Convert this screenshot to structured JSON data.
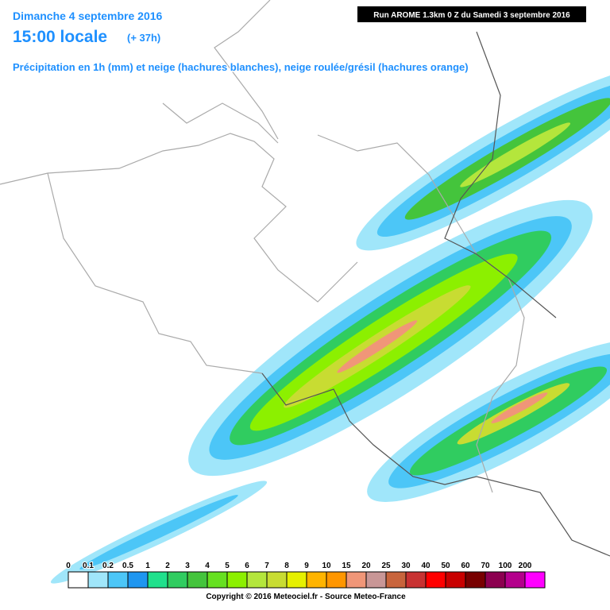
{
  "header": {
    "date": "Dimanche 4 septembre 2016",
    "time": "15:00 locale",
    "lead": "(+ 37h)",
    "description": "Précipitation en 1h (mm) et neige (hachures blanches), neige roulée/grésil (hachures orange)",
    "run": "Run AROME 1.3km 0 Z du Samedi 3 septembre 2016"
  },
  "legend": {
    "labels": [
      0,
      0.1,
      0.2,
      0.5,
      1,
      2,
      3,
      4,
      5,
      6,
      7,
      8,
      9,
      10,
      15,
      20,
      25,
      30,
      40,
      50,
      60,
      70,
      100,
      200
    ],
    "colors": [
      "#ffffff",
      "#a0e6fa",
      "#4cc6f7",
      "#1e96f0",
      "#20e08c",
      "#30cc60",
      "#44c43c",
      "#66e020",
      "#8cf000",
      "#b4e63c",
      "#c8dc32",
      "#e6f000",
      "#ffb400",
      "#ff9600",
      "#f09678",
      "#c89696",
      "#c8643c",
      "#c83232",
      "#ff0000",
      "#c80000",
      "#780000",
      "#8c0050",
      "#b4008c",
      "#ff00ff"
    ]
  },
  "footer": {
    "copyright": "Copyright © 2016 Meteociel.fr - Source Meteo-France"
  }
}
